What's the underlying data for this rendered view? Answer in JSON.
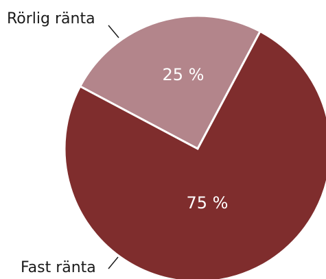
{
  "chart_data": {
    "type": "pie",
    "title": "",
    "slices": [
      {
        "name": "Rörlig ränta",
        "value": 25,
        "value_label": "25 %",
        "color": "#b3858b"
      },
      {
        "name": "Fast ränta",
        "value": 75,
        "value_label": "75 %",
        "color": "#7f2d2d"
      }
    ],
    "start_angle_deg": 28,
    "legend": "none"
  }
}
